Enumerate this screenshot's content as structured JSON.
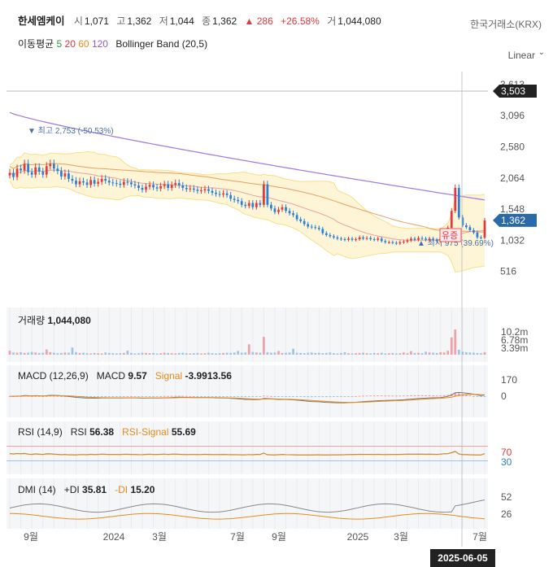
{
  "header": {
    "name": "한세엠케이",
    "open_label": "시",
    "open": "1,071",
    "high_label": "고",
    "high": "1,362",
    "low_label": "저",
    "low": "1,044",
    "close_label": "종",
    "close": "1,362",
    "change": "▲ 286",
    "change_pct": "+26.58%",
    "volume_label": "거",
    "volume": "1,044,080",
    "exchange": "한국거래소(KRX)",
    "ma_label": "이동평균",
    "ma_periods": [
      "5",
      "20",
      "60",
      "120"
    ],
    "bb_label": "Bollinger Band (20,5)",
    "scale": "Linear",
    "scale_icon": "chevron-down-icon"
  },
  "panels": {
    "volume": {
      "label": "거래량",
      "value": "1,044,080"
    },
    "macd": {
      "label": "MACD (12,26,9)",
      "macd_label": "MACD",
      "macd_value": "9.57",
      "signal_label": "Signal",
      "signal_value": "-3.9913.56"
    },
    "rsi": {
      "label": "RSI (14,9)",
      "rsi_label": "RSI",
      "rsi_value": "56.38",
      "signal_label": "RSI-Signal",
      "signal_value": "55.69"
    },
    "dmi": {
      "label": "DMI (14)",
      "pdi_label": "+DI",
      "pdi_value": "35.81",
      "mdi_label": "-DI",
      "mdi_value": "15.20"
    }
  },
  "crosshair_date": "2025-06-05",
  "chart_data": {
    "type": "candlestick",
    "x_axis_labels": [
      "9월",
      "2024",
      "3월",
      "7월",
      "9월",
      "2025",
      "3월",
      "7월"
    ],
    "price_axis": {
      "ticks": [
        "3,613",
        "3,096",
        "2,580",
        "2,064",
        "1,548",
        "1,032",
        "516"
      ],
      "range": [
        0,
        3800
      ]
    },
    "price_badges": {
      "top": "3,503",
      "current": "1,362"
    },
    "annotations": {
      "high": "▼ 최고 2,753 (-50.53%)",
      "low": "▲ 최저 975 (39.69%)",
      "marker": "유증"
    },
    "volume_axis": [
      "10.2m",
      "6.78m",
      "3.39m"
    ],
    "macd_axis": [
      "170",
      "0"
    ],
    "rsi_axis": [
      "70",
      "30"
    ],
    "dmi_axis": [
      "52",
      "26"
    ],
    "colors": {
      "up": "#e0393e",
      "down": "#2b7fd4",
      "ma120": "#a078e0",
      "ma60": "#e8a060",
      "bb": "#f5e08a",
      "bb_fill": "#fdf5d6"
    },
    "close_values": [
      2150,
      2080,
      2220,
      2190,
      2300,
      2160,
      2120,
      2240,
      2170,
      2120,
      2260,
      2300,
      2220,
      2180,
      2090,
      2140,
      2050,
      2020,
      1960,
      2010,
      1990,
      1950,
      2030,
      1970,
      2000,
      2050,
      2020,
      1990,
      1980,
      1970,
      1950,
      2000,
      1990,
      1960,
      1940,
      1900,
      1870,
      1920,
      1950,
      1910,
      1890,
      1930,
      1960,
      1900,
      1950,
      1980,
      1940,
      1900,
      1880,
      1890,
      1870,
      1850,
      1860,
      1880,
      1850,
      1820,
      1800,
      1790,
      1810,
      1780,
      1720,
      1700,
      1680,
      1620,
      1600,
      1650,
      1580,
      1650,
      1620,
      1960,
      1620,
      1560,
      1500,
      1540,
      1580,
      1520,
      1480,
      1450,
      1380,
      1350,
      1300,
      1260,
      1250,
      1240,
      1220,
      1150,
      1120,
      1100,
      1080,
      1060,
      1050,
      1040,
      1060,
      1040,
      1050,
      1080,
      1060,
      1070,
      1050,
      1040,
      1060,
      1020,
      1000,
      1000,
      990,
      980,
      1000,
      1010,
      1030,
      1060,
      1040,
      1070,
      1060,
      1040,
      1060,
      1040,
      1020,
      1070,
      1180,
      1240,
      1520,
      1900,
      1410,
      1280,
      1250,
      1200,
      1160,
      1080,
      1076,
      1362
    ],
    "volume_values": [
      1.6,
      0.9,
      0.8,
      1.0,
      0.7,
      0.8,
      1.1,
      0.9,
      0.7,
      0.8,
      2.1,
      1.0,
      0.8,
      0.6,
      0.7,
      0.9,
      0.8,
      2.9,
      1.0,
      0.7,
      0.8,
      0.6,
      0.5,
      0.7,
      0.6,
      0.5,
      0.9,
      0.7,
      0.6,
      0.5,
      0.6,
      0.7,
      1.6,
      0.7,
      0.5,
      0.6,
      0.8,
      0.7,
      0.6,
      0.7,
      0.5,
      0.6,
      0.8,
      0.7,
      0.6,
      0.5,
      0.7,
      0.8,
      0.6,
      0.5,
      0.6,
      0.7,
      0.5,
      0.6,
      0.8,
      0.6,
      0.5,
      0.6,
      0.7,
      0.8,
      0.7,
      0.9,
      1.5,
      0.8,
      0.9,
      4.2,
      1.1,
      0.9,
      0.8,
      7.2,
      1.0,
      0.8,
      0.9,
      1.5,
      0.7,
      0.8,
      0.9,
      2.4,
      0.8,
      0.7,
      0.6,
      0.8,
      0.9,
      0.7,
      0.8,
      0.6,
      0.7,
      0.9,
      0.6,
      0.5,
      0.7,
      1.0,
      0.6,
      0.5,
      0.6,
      0.7,
      0.8,
      0.6,
      0.5,
      0.7,
      0.6,
      0.8,
      0.5,
      0.6,
      0.7,
      0.5,
      0.6,
      0.9,
      0.6,
      1.4,
      0.7,
      0.8,
      0.6,
      1.2,
      0.9,
      0.8,
      0.7,
      1.0,
      0.9,
      1.6,
      7.0,
      10.2,
      2.0,
      1.2,
      1.0,
      0.9,
      0.8,
      0.7,
      0.6,
      1.0
    ]
  }
}
